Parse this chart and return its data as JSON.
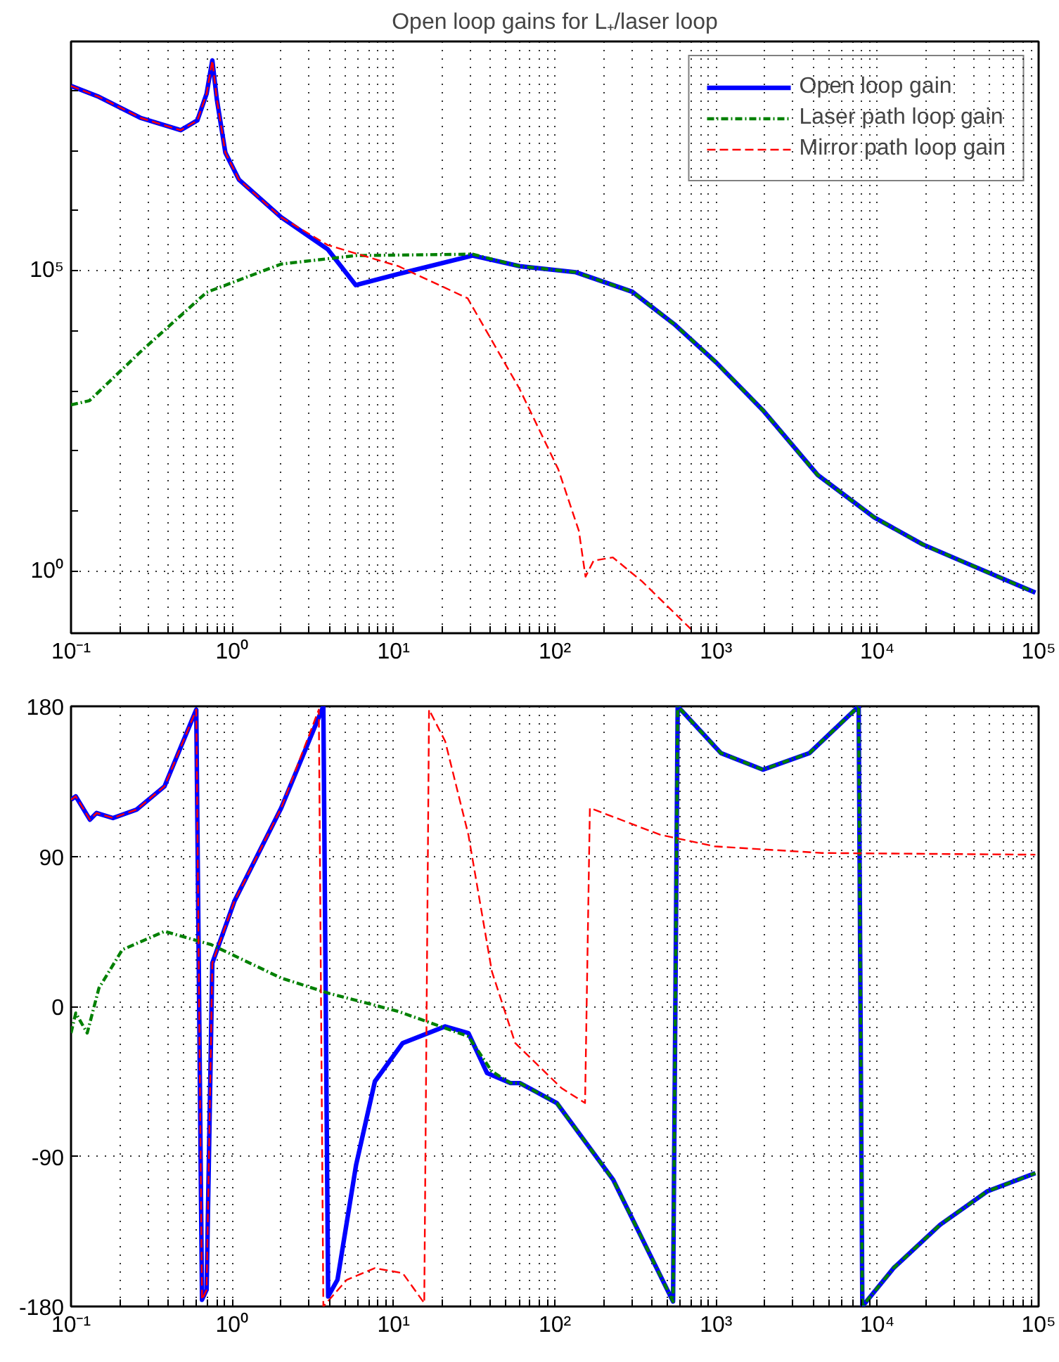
{
  "chart_data": [
    {
      "type": "line",
      "title": "Open loop gains for L₊/laser loop",
      "log": "xy",
      "grid": true,
      "legend": "top right",
      "xlim": [
        0.1,
        100000
      ],
      "ylim": [
        0.093,
        660000000
      ],
      "xticks": [
        {
          "value": 0.1,
          "label": "10⁻¹"
        },
        {
          "value": 0.2,
          "label": null
        },
        {
          "value": 0.3,
          "label": null
        },
        {
          "value": 0.4,
          "label": null
        },
        {
          "value": 0.5,
          "label": null
        },
        {
          "value": 0.6,
          "label": null
        },
        {
          "value": 0.7,
          "label": null
        },
        {
          "value": 0.8,
          "label": null
        },
        {
          "value": 0.9,
          "label": null
        },
        {
          "value": 1,
          "label": "10⁰"
        },
        {
          "value": 2,
          "label": null
        },
        {
          "value": 3,
          "label": null
        },
        {
          "value": 4,
          "label": null
        },
        {
          "value": 5,
          "label": null
        },
        {
          "value": 6,
          "label": null
        },
        {
          "value": 7,
          "label": null
        },
        {
          "value": 8,
          "label": null
        },
        {
          "value": 9,
          "label": null
        },
        {
          "value": 10,
          "label": "10¹"
        },
        {
          "value": 20,
          "label": null
        },
        {
          "value": 30,
          "label": null
        },
        {
          "value": 40,
          "label": null
        },
        {
          "value": 50,
          "label": null
        },
        {
          "value": 60,
          "label": null
        },
        {
          "value": 70,
          "label": null
        },
        {
          "value": 80,
          "label": null
        },
        {
          "value": 90,
          "label": null
        },
        {
          "value": 100,
          "label": "10²"
        },
        {
          "value": 200,
          "label": null
        },
        {
          "value": 300,
          "label": null
        },
        {
          "value": 400,
          "label": null
        },
        {
          "value": 500,
          "label": null
        },
        {
          "value": 600,
          "label": null
        },
        {
          "value": 700,
          "label": null
        },
        {
          "value": 800,
          "label": null
        },
        {
          "value": 900,
          "label": null
        },
        {
          "value": 1000,
          "label": "10³"
        },
        {
          "value": 2000,
          "label": null
        },
        {
          "value": 3000,
          "label": null
        },
        {
          "value": 4000,
          "label": null
        },
        {
          "value": 5000,
          "label": null
        },
        {
          "value": 6000,
          "label": null
        },
        {
          "value": 7000,
          "label": null
        },
        {
          "value": 8000,
          "label": null
        },
        {
          "value": 9000,
          "label": null
        },
        {
          "value": 10000,
          "label": "10⁴"
        },
        {
          "value": 20000,
          "label": null
        },
        {
          "value": 30000,
          "label": null
        },
        {
          "value": 40000,
          "label": null
        },
        {
          "value": 50000,
          "label": null
        },
        {
          "value": 60000,
          "label": null
        },
        {
          "value": 70000,
          "label": null
        },
        {
          "value": 80000,
          "label": null
        },
        {
          "value": 90000,
          "label": null
        },
        {
          "value": 100000,
          "label": "10⁵"
        }
      ],
      "yticks": [
        {
          "value": 1,
          "label": "10⁰"
        },
        {
          "value": 10,
          "label": null
        },
        {
          "value": 100,
          "label": null
        },
        {
          "value": 1000,
          "label": null
        },
        {
          "value": 10000,
          "label": null
        },
        {
          "value": 100000,
          "label": "10⁵"
        },
        {
          "value": 1000000,
          "label": null
        },
        {
          "value": 10000000,
          "label": null
        },
        {
          "value": 100000000,
          "label": null
        }
      ],
      "series": [
        {
          "name": "Open loop gain",
          "color": "#0000ff",
          "line_style": "solid",
          "x": [
            0.1,
            0.149,
            0.272,
            0.479,
            0.607,
            0.693,
            0.752,
            0.802,
            0.906,
            1.1,
            2.01,
            3.9,
            5.83,
            10.7,
            30.9,
            60.3,
            135,
            302,
            550,
            1000,
            1950,
            4270,
            9550,
            19100,
            37200,
            95500
          ],
          "values": [
            120000000,
            79000000,
            35000000,
            22000000,
            32000000,
            89000000,
            320000000,
            72000000,
            9300000,
            3300000,
            780000,
            230000,
            58000,
            89000,
            180000,
            120000,
            95000,
            45000,
            13000,
            3000,
            480,
            40,
            7.9,
            2.8,
            1.3,
            0.44
          ]
        },
        {
          "name": "Laser path loop gain",
          "color": "#008000",
          "line_style": "dashdot",
          "x": [
            0.1,
            0.13,
            0.272,
            0.693,
            2.01,
            5.83,
            30.9,
            60.3,
            135,
            302,
            550,
            1000,
            1950,
            4270,
            9550,
            19100,
            37200,
            95500
          ],
          "values": [
            590,
            690,
            4600,
            44000,
            130000,
            180000,
            190000,
            120000,
            95000,
            45000,
            13000,
            3000,
            480,
            40,
            7.9,
            2.8,
            1.3,
            0.44
          ]
        },
        {
          "name": "Mirror path loop gain",
          "color": "#ff0000",
          "line_style": "dashed",
          "x": [
            0.1,
            0.149,
            0.272,
            0.479,
            0.607,
            0.693,
            0.752,
            0.802,
            0.906,
            1.1,
            2.01,
            3.9,
            10.7,
            28.8,
            60.3,
            105,
            141,
            155,
            174,
            229,
            347,
            708
          ],
          "values": [
            120000000,
            79000000,
            35000000,
            22000000,
            32000000,
            89000000,
            320000000,
            72000000,
            9300000,
            3300000,
            780000,
            270000,
            120000,
            35000,
            1100,
            50,
            4.7,
            0.81,
            1.5,
            1.7,
            0.68,
            0.105
          ]
        }
      ]
    },
    {
      "type": "line",
      "log": "x",
      "grid": true,
      "xlim": [
        0.1,
        100000
      ],
      "ylim": [
        -180,
        180
      ],
      "xticks": [
        {
          "value": 0.1,
          "label": "10⁻¹"
        },
        {
          "value": 0.2,
          "label": null
        },
        {
          "value": 0.3,
          "label": null
        },
        {
          "value": 0.4,
          "label": null
        },
        {
          "value": 0.5,
          "label": null
        },
        {
          "value": 0.6,
          "label": null
        },
        {
          "value": 0.7,
          "label": null
        },
        {
          "value": 0.8,
          "label": null
        },
        {
          "value": 0.9,
          "label": null
        },
        {
          "value": 1,
          "label": "10⁰"
        },
        {
          "value": 2,
          "label": null
        },
        {
          "value": 3,
          "label": null
        },
        {
          "value": 4,
          "label": null
        },
        {
          "value": 5,
          "label": null
        },
        {
          "value": 6,
          "label": null
        },
        {
          "value": 7,
          "label": null
        },
        {
          "value": 8,
          "label": null
        },
        {
          "value": 9,
          "label": null
        },
        {
          "value": 10,
          "label": "10¹"
        },
        {
          "value": 20,
          "label": null
        },
        {
          "value": 30,
          "label": null
        },
        {
          "value": 40,
          "label": null
        },
        {
          "value": 50,
          "label": null
        },
        {
          "value": 60,
          "label": null
        },
        {
          "value": 70,
          "label": null
        },
        {
          "value": 80,
          "label": null
        },
        {
          "value": 90,
          "label": null
        },
        {
          "value": 100,
          "label": "10²"
        },
        {
          "value": 200,
          "label": null
        },
        {
          "value": 300,
          "label": null
        },
        {
          "value": 400,
          "label": null
        },
        {
          "value": 500,
          "label": null
        },
        {
          "value": 600,
          "label": null
        },
        {
          "value": 700,
          "label": null
        },
        {
          "value": 800,
          "label": null
        },
        {
          "value": 900,
          "label": null
        },
        {
          "value": 1000,
          "label": "10³"
        },
        {
          "value": 2000,
          "label": null
        },
        {
          "value": 3000,
          "label": null
        },
        {
          "value": 4000,
          "label": null
        },
        {
          "value": 5000,
          "label": null
        },
        {
          "value": 6000,
          "label": null
        },
        {
          "value": 7000,
          "label": null
        },
        {
          "value": 8000,
          "label": null
        },
        {
          "value": 9000,
          "label": null
        },
        {
          "value": 10000,
          "label": "10⁴"
        },
        {
          "value": 20000,
          "label": null
        },
        {
          "value": 30000,
          "label": null
        },
        {
          "value": 40000,
          "label": null
        },
        {
          "value": 50000,
          "label": null
        },
        {
          "value": 60000,
          "label": null
        },
        {
          "value": 70000,
          "label": null
        },
        {
          "value": 80000,
          "label": null
        },
        {
          "value": 90000,
          "label": null
        },
        {
          "value": 100000,
          "label": "10⁵"
        }
      ],
      "yticks": [
        180,
        90,
        0,
        -90,
        -180
      ],
      "series": [
        {
          "color": "#0000ff",
          "line_style": "solid",
          "x": [
            0.1,
            0.107,
            0.131,
            0.144,
            0.182,
            0.255,
            0.38,
            0.598,
            0.649,
            0.693,
            0.752,
            1.03,
            2.01,
            3.67,
            3.93,
            4.49,
            5.86,
            7.66,
            11.4,
            20.9,
            29.1,
            38.0,
            53.1,
            60.7,
            103,
            230,
            541,
            578,
            1070,
            1950,
            3800,
            7660,
            8070,
            12600,
            24500,
            47900,
            95500
          ],
          "values": [
            124,
            126,
            112,
            116,
            113,
            118,
            132,
            178,
            -176,
            -170,
            26,
            63,
            119,
            180,
            -174,
            -164,
            -95,
            -45,
            -22,
            -12,
            -16,
            -40,
            -46,
            -46,
            -58,
            -104,
            -177,
            180,
            152,
            142,
            152,
            180,
            -180,
            -157,
            -131,
            -111,
            -100
          ]
        },
        {
          "color": "#008000",
          "line_style": "dashdot",
          "x": [
            0.1,
            0.107,
            0.126,
            0.149,
            0.208,
            0.38,
            0.741,
            2.01,
            3.93,
            10.7,
            29.1,
            40.7,
            53.1,
            60.7,
            103,
            230,
            541,
            578,
            1070,
            1950,
            3800,
            7660,
            8070,
            12600,
            24500,
            47900,
            95500
          ],
          "values": [
            -16,
            -4,
            -16,
            11,
            34,
            45,
            37,
            17,
            8,
            -3,
            -18,
            -39,
            -46,
            -46,
            -58,
            -104,
            -177,
            180,
            152,
            142,
            152,
            180,
            -180,
            -157,
            -131,
            -111,
            -100
          ]
        },
        {
          "color": "#ff0000",
          "line_style": "dashed",
          "x": [
            0.1,
            0.107,
            0.131,
            0.144,
            0.182,
            0.255,
            0.38,
            0.598,
            0.649,
            0.693,
            0.752,
            1.03,
            2.01,
            3.44,
            3.67,
            5.13,
            7.66,
            11.4,
            15.5,
            16.6,
            20.9,
            29.1,
            40.7,
            56.8,
            110,
            154,
            165,
            449,
            977,
            4540,
            95500
          ],
          "values": [
            124,
            126,
            112,
            116,
            113,
            118,
            132,
            178,
            -176,
            -170,
            26,
            63,
            119,
            178,
            -180,
            -164,
            -157,
            -160,
            -178,
            178,
            159,
            103,
            21,
            -22,
            -49,
            -58,
            119,
            103,
            96,
            92,
            91
          ]
        }
      ]
    }
  ]
}
